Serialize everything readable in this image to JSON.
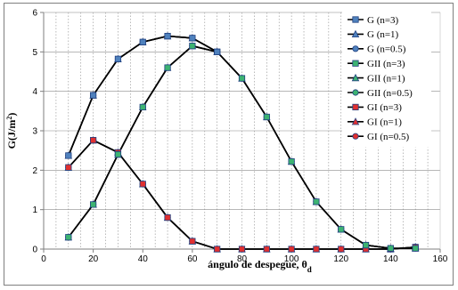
{
  "chart_data": {
    "type": "line",
    "title": "",
    "xlabel": "ángulo de despegue, θ",
    "xlabel_sub": "d",
    "ylabel_main": "G(J/m",
    "ylabel_sup": "2",
    "ylabel_end": ")",
    "xlim": [
      0,
      160
    ],
    "ylim": [
      0,
      6
    ],
    "xticks": [
      0,
      20,
      40,
      60,
      80,
      100,
      120,
      140,
      160
    ],
    "yticks": [
      0,
      1,
      2,
      3,
      4,
      5,
      6
    ],
    "grid": true,
    "legend_position": "right",
    "series": [
      {
        "name": "G (n=3)",
        "color": "#1f3f7f",
        "fill": "#4f81bd",
        "marker": "square",
        "x": [
          10,
          20,
          30,
          40,
          50,
          60,
          70
        ],
        "y": [
          2.37,
          3.9,
          4.82,
          5.25,
          5.4,
          5.35,
          5.0
        ]
      },
      {
        "name": "G (n=1)",
        "color": "#1f3f7f",
        "fill": "#4f81bd",
        "marker": "triangle",
        "x": [
          10,
          20,
          30,
          40,
          50,
          60,
          70
        ],
        "y": [
          2.37,
          3.9,
          4.82,
          5.25,
          5.4,
          5.35,
          5.0
        ]
      },
      {
        "name": "G (n=0.5)",
        "color": "#1f3f7f",
        "fill": "#4f81bd",
        "marker": "circle",
        "x": [
          10,
          20,
          30,
          40,
          50,
          60,
          70
        ],
        "y": [
          2.37,
          3.9,
          4.82,
          5.25,
          5.4,
          5.35,
          5.0
        ]
      },
      {
        "name": "GII (n=3)",
        "color": "#1f3f7f",
        "fill": "#3cb371",
        "marker": "square",
        "x": [
          10,
          20,
          30,
          40,
          50,
          60,
          70,
          80,
          90,
          100,
          110,
          120,
          130,
          140,
          150
        ],
        "y": [
          0.3,
          1.13,
          2.4,
          3.6,
          4.6,
          5.15,
          5.0,
          4.33,
          3.35,
          2.22,
          1.2,
          0.5,
          0.1,
          0.02,
          0.02
        ]
      },
      {
        "name": "GII (n=1)",
        "color": "#1f3f7f",
        "fill": "#3cb371",
        "marker": "triangle",
        "x": [
          10,
          20,
          30,
          40,
          50,
          60,
          70,
          80,
          90,
          100,
          110,
          120,
          130,
          140,
          150
        ],
        "y": [
          0.3,
          1.13,
          2.4,
          3.6,
          4.6,
          5.15,
          5.0,
          4.33,
          3.35,
          2.22,
          1.2,
          0.5,
          0.1,
          0.02,
          0.02
        ]
      },
      {
        "name": "GII (n=0.5)",
        "color": "#1f3f7f",
        "fill": "#3cb371",
        "marker": "circle",
        "x": [
          10,
          20,
          30,
          40,
          50,
          60,
          70,
          80,
          90,
          100,
          110,
          120,
          130,
          140,
          150
        ],
        "y": [
          0.3,
          1.13,
          2.4,
          3.6,
          4.6,
          5.15,
          5.0,
          4.33,
          3.35,
          2.22,
          1.2,
          0.5,
          0.1,
          0.02,
          0.02
        ]
      },
      {
        "name": "GI (n=3)",
        "color": "#1f3f7f",
        "fill": "#e03030",
        "marker": "square",
        "x": [
          10,
          20,
          30,
          40,
          50,
          60,
          70,
          80,
          90,
          100,
          110,
          120,
          130,
          140,
          150
        ],
        "y": [
          2.07,
          2.76,
          2.45,
          1.65,
          0.8,
          0.2,
          0.0,
          0.0,
          0.0,
          0.0,
          0.0,
          0.0,
          0.0,
          0.0,
          0.05
        ]
      },
      {
        "name": "GI (n=1)",
        "color": "#1f3f7f",
        "fill": "#e03030",
        "marker": "triangle",
        "x": [
          10,
          20,
          30,
          40,
          50,
          60,
          70,
          80,
          90,
          100,
          110,
          120,
          130,
          140,
          150
        ],
        "y": [
          2.07,
          2.76,
          2.45,
          1.65,
          0.8,
          0.2,
          0.0,
          0.0,
          0.0,
          0.0,
          0.0,
          0.0,
          0.0,
          0.0,
          0.05
        ]
      },
      {
        "name": "GI (n=0.5)",
        "color": "#1f3f7f",
        "fill": "#e03030",
        "marker": "circle",
        "x": [
          10,
          20,
          30,
          40,
          50,
          60,
          70,
          80,
          90,
          100,
          110,
          120,
          130,
          140,
          150
        ],
        "y": [
          2.07,
          2.76,
          2.45,
          1.65,
          0.8,
          0.2,
          0.0,
          0.0,
          0.0,
          0.0,
          0.0,
          0.0,
          0.0,
          0.0,
          0.05
        ]
      }
    ]
  }
}
